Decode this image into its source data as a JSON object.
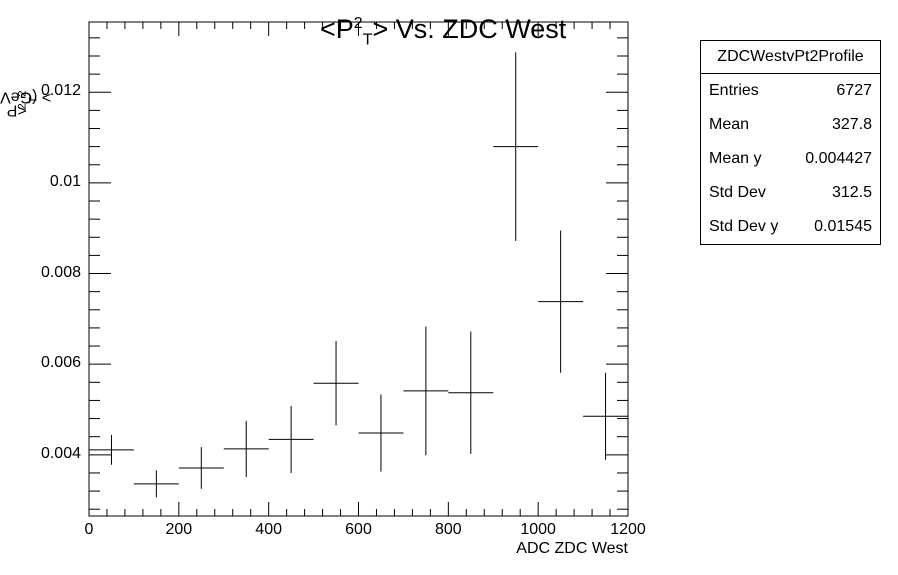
{
  "chart_data": {
    "type": "scatter",
    "title_parts": {
      "pre": "<P",
      "sup": "2",
      "sub": "T",
      "post": "> Vs. ZDC West"
    },
    "ylabel_parts": {
      "pre": "<P",
      "sup": "2",
      "sub": "T",
      "post": "> (GeV/c)",
      "unit_sup": "2"
    },
    "xlabel": "ADC ZDC West",
    "xlim": [
      0,
      1200
    ],
    "ylim": [
      0.00265,
      0.01355
    ],
    "x_ticks": [
      "0",
      "200",
      "400",
      "600",
      "800",
      "1000",
      "1200"
    ],
    "x_tick_values": [
      0,
      200,
      400,
      600,
      800,
      1000,
      1200
    ],
    "y_ticks": [
      "0.004",
      "0.006",
      "0.008",
      "0.01",
      "0.012"
    ],
    "y_tick_values": [
      0.004,
      0.006,
      0.008,
      0.01,
      0.012
    ],
    "bin_width": 100,
    "x": [
      50,
      150,
      250,
      350,
      450,
      550,
      650,
      750,
      850,
      950,
      1050,
      1150
    ],
    "y": [
      0.00411,
      0.00336,
      0.00371,
      0.00413,
      0.00434,
      0.00558,
      0.00448,
      0.00541,
      0.00537,
      0.0108,
      0.00738,
      0.00485
    ],
    "yerr": [
      0.00033,
      0.0003,
      0.00046,
      0.00062,
      0.00074,
      0.00093,
      0.00085,
      0.00142,
      0.00135,
      0.00208,
      0.00157,
      0.00096
    ],
    "grid": false,
    "legend": "none"
  },
  "stats_box": {
    "title": "ZDCWestvPt2Profile",
    "rows": [
      {
        "label": "Entries",
        "value": "6727"
      },
      {
        "label": "Mean",
        "value": "327.8"
      },
      {
        "label": "Mean y",
        "value": "0.004427"
      },
      {
        "label": "Std Dev",
        "value": "312.5"
      },
      {
        "label": "Std Dev y",
        "value": "0.01545"
      }
    ]
  }
}
